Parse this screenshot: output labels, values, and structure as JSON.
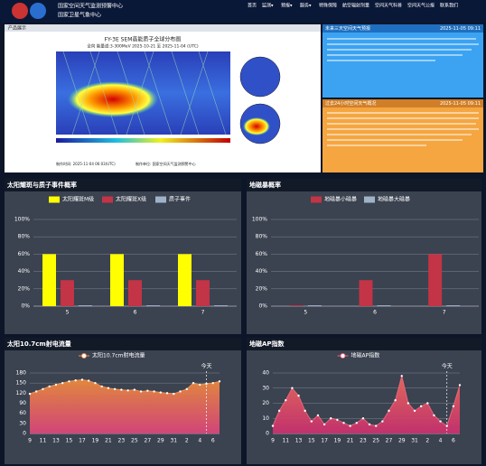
{
  "header": {
    "title": "国家空间天气监测预警中心",
    "subtitle": "国家卫星气象中心",
    "nav": [
      "首页",
      "监测▾",
      "预报▾",
      "服务▾",
      "特殊保障",
      "航空辐射剂量",
      "空间天气科普",
      "空间天气公报",
      "联系我们"
    ]
  },
  "product": {
    "heading": "产品展示",
    "title": "FY-3E SEM高能质子全球分布图",
    "subtitle": "全向  能量道:3-300MeV  2025-10-21 至 2025-11-04 (UTC)",
    "made_time": "制作时间: 2025-11-04 06:03(UTC)",
    "made_by": "制作单位: 国家空间天气监测预警中心"
  },
  "forecast": {
    "title": "未来三天空间天气预报",
    "date": "2025-11-05 09:11"
  },
  "summary": {
    "title": "过去24小时空间天气概况",
    "date": "2025-11-05 09:11"
  },
  "chart_data": [
    {
      "type": "bar",
      "title": "太阳耀斑与质子事件概率",
      "categories": [
        "5",
        "6",
        "7"
      ],
      "series": [
        {
          "name": "太阳耀斑M级",
          "color": "#ffff00",
          "values": [
            60,
            60,
            60
          ]
        },
        {
          "name": "太阳耀斑X级",
          "color": "#c23446",
          "values": [
            30,
            30,
            30
          ]
        },
        {
          "name": "质子事件",
          "color": "#9fb3c8",
          "values": [
            1,
            1,
            1
          ]
        }
      ],
      "ylim": [
        0,
        100
      ],
      "yticks": [
        {
          "value": 0,
          "label": "0%"
        },
        {
          "value": 20,
          "label": "20%"
        },
        {
          "value": 40,
          "label": "40%"
        },
        {
          "value": 60,
          "label": "60%"
        },
        {
          "value": 80,
          "label": "80%"
        },
        {
          "value": 100,
          "label": "100%"
        }
      ],
      "grid": true
    },
    {
      "type": "bar",
      "title": "地磁暴概率",
      "categories": [
        "5",
        "6",
        "7"
      ],
      "series": [
        {
          "name": "地磁暴小磁暴",
          "color": "#c23446",
          "values": [
            1,
            30,
            60
          ]
        },
        {
          "name": "地磁暴大磁暴",
          "color": "#9fb3c8",
          "values": [
            1,
            1,
            1
          ]
        }
      ],
      "ylim": [
        0,
        100
      ],
      "yticks": [
        {
          "value": 0,
          "label": "0%"
        },
        {
          "value": 20,
          "label": "20%"
        },
        {
          "value": 40,
          "label": "40%"
        },
        {
          "value": 60,
          "label": "60%"
        },
        {
          "value": 80,
          "label": "80%"
        },
        {
          "value": 100,
          "label": "100%"
        }
      ],
      "grid": true
    },
    {
      "type": "line",
      "title": "太阳10.7cm射电流量",
      "categories": [
        "9",
        null,
        "11",
        null,
        "13",
        null,
        "15",
        null,
        "17",
        null,
        "19",
        null,
        "21",
        null,
        "23",
        null,
        "25",
        null,
        "27",
        null,
        "29",
        null,
        "31",
        null,
        "2",
        null,
        "4",
        null,
        "6",
        null
      ],
      "series": [
        {
          "name": "太阳10.7cm射电流量",
          "color": "#f0944d",
          "values": [
            118,
            125,
            132,
            140,
            145,
            150,
            155,
            158,
            160,
            157,
            150,
            140,
            135,
            132,
            130,
            128,
            130,
            125,
            127,
            125,
            122,
            120,
            118,
            125,
            132,
            150,
            145,
            148,
            150,
            155
          ]
        }
      ],
      "ylim": [
        0,
        180
      ],
      "yticks": [
        0,
        30,
        60,
        90,
        120,
        150,
        180
      ],
      "grid": true,
      "annotation": {
        "text": "今天",
        "x": 27
      }
    },
    {
      "type": "line",
      "title": "地磁AP指数",
      "categories": [
        "9",
        null,
        "11",
        null,
        "13",
        null,
        "15",
        null,
        "17",
        null,
        "19",
        null,
        "21",
        null,
        "23",
        null,
        "25",
        null,
        "27",
        null,
        "29",
        null,
        "31",
        null,
        "2",
        null,
        "4",
        null,
        "6",
        null
      ],
      "series": [
        {
          "name": "地磁AP指数",
          "color": "#e8647a",
          "values": [
            5,
            15,
            22,
            30,
            25,
            15,
            8,
            12,
            6,
            10,
            9,
            7,
            5,
            7,
            10,
            6,
            5,
            8,
            15,
            22,
            38,
            20,
            15,
            18,
            20,
            12,
            8,
            5,
            18,
            32
          ]
        }
      ],
      "ylim": [
        0,
        40
      ],
      "yticks": [
        0,
        10,
        20,
        30,
        40
      ],
      "grid": true,
      "annotation": {
        "text": "今天",
        "x": 27
      }
    }
  ]
}
